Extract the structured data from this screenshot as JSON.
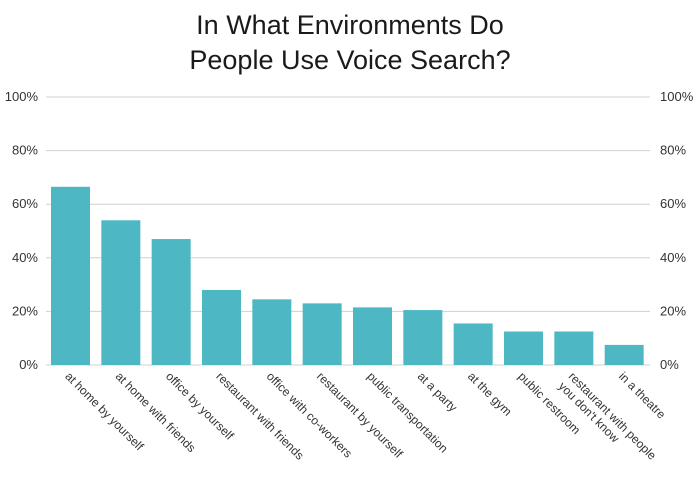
{
  "chart_data": {
    "type": "bar",
    "title_lines": [
      "In What Environments Do",
      "People Use Voice Search?"
    ],
    "categories": [
      [
        "at home by yourself"
      ],
      [
        "at home with friends"
      ],
      [
        "office by yourself"
      ],
      [
        "restaurant with friends"
      ],
      [
        "office with co-workers"
      ],
      [
        "restaurant by yourself"
      ],
      [
        "public transportation"
      ],
      [
        "at a party"
      ],
      [
        "at the gym"
      ],
      [
        "public restroom"
      ],
      [
        "restaurant with people",
        "you don't know"
      ],
      [
        "in a theatre"
      ]
    ],
    "values": [
      66.5,
      54,
      47,
      28,
      24.5,
      23,
      21.5,
      20.5,
      15.5,
      12.5,
      12.5,
      7.5
    ],
    "yticks": [
      "0%",
      "20%",
      "40%",
      "60%",
      "80%",
      "100%"
    ],
    "ylim": [
      0,
      100
    ],
    "grid": true,
    "bar_color": "#4db8c4",
    "grid_color": "#d0d0d0"
  }
}
